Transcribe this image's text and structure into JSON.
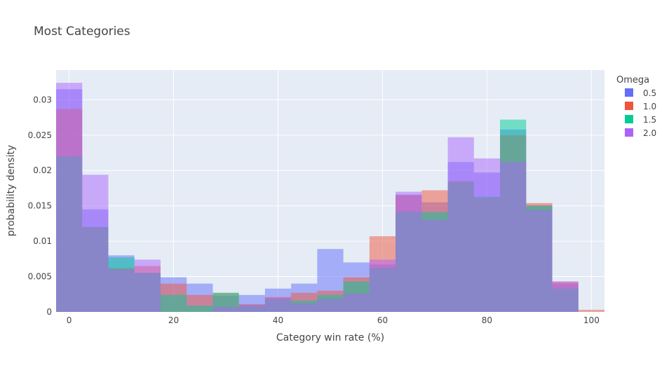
{
  "chart_data": {
    "type": "bar",
    "title": "Most Categories",
    "xlabel": "Category win rate (%)",
    "ylabel": "probability density",
    "barmode": "overlay",
    "bin_width": 5,
    "bin_starts": [
      -2.5,
      2.5,
      7.5,
      12.5,
      17.5,
      22.5,
      27.5,
      32.5,
      37.5,
      42.5,
      47.5,
      52.5,
      57.5,
      62.5,
      67.5,
      72.5,
      77.5,
      82.5,
      87.5,
      92.5,
      97.5
    ],
    "xlim": [
      -2.5,
      102.5
    ],
    "ylim": [
      0,
      0.0342
    ],
    "xticks": [
      0,
      20,
      40,
      60,
      80,
      100
    ],
    "xtick_labels": [
      "0",
      "20",
      "40",
      "60",
      "80",
      "100"
    ],
    "yticks": [
      0,
      0.005,
      0.01,
      0.015,
      0.02,
      0.025,
      0.03
    ],
    "ytick_labels": [
      "0",
      "0.005",
      "0.01",
      "0.015",
      "0.02",
      "0.025",
      "0.03"
    ],
    "grid": true,
    "legend_position": "top-right",
    "legend_title": "Omega",
    "series": [
      {
        "name": "0.5",
        "color": "#636efa",
        "values": [
          0.0315,
          0.0145,
          0.008,
          0.0055,
          0.0049,
          0.004,
          0.0023,
          0.0024,
          0.0033,
          0.004,
          0.0089,
          0.007,
          0.0067,
          0.0166,
          0.0155,
          0.0212,
          0.0197,
          0.0258,
          0.0151,
          0.004,
          0.0
        ]
      },
      {
        "name": "1.0",
        "color": "#ef553b",
        "values": [
          0.0287,
          0.012,
          0.0062,
          0.0065,
          0.004,
          0.0024,
          0.0027,
          0.0011,
          0.0021,
          0.0027,
          0.003,
          0.0049,
          0.0107,
          0.0165,
          0.0172,
          0.0185,
          0.0162,
          0.025,
          0.0154,
          0.0043,
          0.0003
        ]
      },
      {
        "name": "1.5",
        "color": "#00cc96",
        "values": [
          0.022,
          0.012,
          0.0077,
          0.0055,
          0.0024,
          0.0009,
          0.0027,
          0.0009,
          0.0018,
          0.0016,
          0.0024,
          0.0043,
          0.0062,
          0.0142,
          0.0141,
          0.0184,
          0.0163,
          0.0272,
          0.015,
          0.0033,
          0.0
        ]
      },
      {
        "name": "2.0",
        "color": "#ab63fa",
        "values": [
          0.0324,
          0.0194,
          0.006,
          0.0074,
          0.0,
          0.0,
          0.0007,
          0.001,
          0.002,
          0.0012,
          0.0018,
          0.0026,
          0.0074,
          0.017,
          0.013,
          0.0247,
          0.0217,
          0.0212,
          0.0144,
          0.0043,
          0.0
        ]
      }
    ]
  }
}
